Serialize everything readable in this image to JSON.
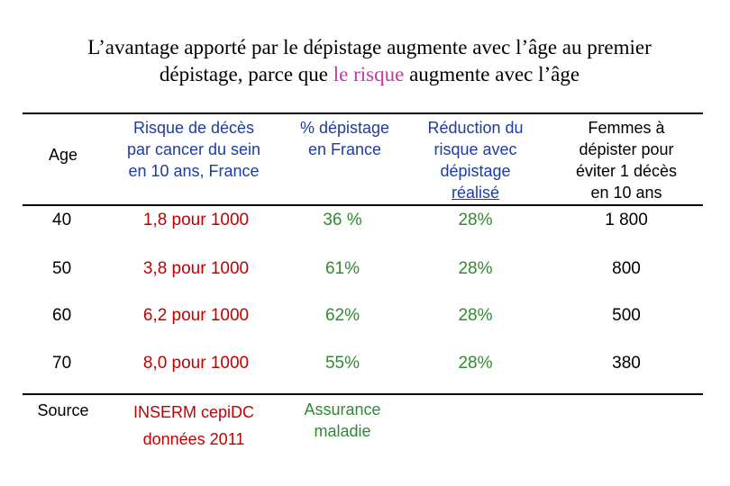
{
  "title": {
    "part1": "L’avantage apporté par le dépistage augmente avec l’âge au premier",
    "part2": "dépistage, parce que ",
    "highlight": "le risque",
    "part3": " augmente avec l’âge"
  },
  "table": {
    "headers": {
      "age": "Age",
      "risque": [
        "Risque de décès",
        "par cancer du sein",
        "en 10 ans, France"
      ],
      "depistage": [
        "% dépistage",
        "en France"
      ],
      "reduction": [
        "Réduction du",
        "risque avec",
        "dépistage",
        "réalisé"
      ],
      "femmes": [
        "Femmes à",
        "dépister pour",
        "éviter 1 décès",
        "en 10 ans"
      ]
    },
    "rows": [
      {
        "age": "40",
        "risque": "1,8 pour 1000",
        "depistage": "36 %",
        "reduction": "28%",
        "femmes": "1 800"
      },
      {
        "age": "50",
        "risque": "3,8 pour 1000",
        "depistage": "61%",
        "reduction": "28%",
        "femmes": "800"
      },
      {
        "age": "60",
        "risque": "6,2 pour 1000",
        "depistage": "62%",
        "reduction": "28%",
        "femmes": "500"
      },
      {
        "age": "70",
        "risque": "8,0 pour 1000",
        "depistage": "55%",
        "reduction": "28%",
        "femmes": "380"
      }
    ],
    "source": {
      "label": "Source",
      "risque": [
        "INSERM cepiDC",
        "données 2011"
      ],
      "depistage": [
        "Assurance",
        "maladie"
      ]
    }
  },
  "colors": {
    "title_highlight": "#c03aa8",
    "header_blue": "#1f3c9e",
    "red": "#c00000",
    "green": "#2e8b2e"
  }
}
